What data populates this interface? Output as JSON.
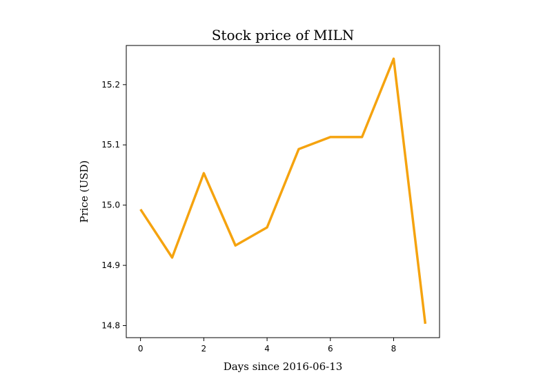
{
  "chart_data": {
    "type": "line",
    "title": "Stock price of MILN",
    "xlabel": "Days since 2016-06-13",
    "ylabel": "Price (USD)",
    "x": [
      0,
      1,
      2,
      3,
      4,
      5,
      6,
      7,
      8,
      9
    ],
    "series": [
      {
        "values": [
          14.993,
          14.913,
          15.053,
          14.933,
          14.963,
          15.093,
          15.113,
          15.113,
          15.243,
          14.803
        ],
        "color": "#f5a30f"
      }
    ],
    "xlim": [
      -0.45,
      9.45
    ],
    "ylim": [
      14.78,
      15.265
    ],
    "xticks": [
      0,
      2,
      4,
      6,
      8
    ],
    "yticks": [
      14.8,
      14.9,
      15.0,
      15.1,
      15.2
    ],
    "xtick_labels": [
      "0",
      "2",
      "4",
      "6",
      "8"
    ],
    "ytick_labels": [
      "14.8",
      "14.9",
      "15.0",
      "15.1",
      "15.2"
    ],
    "grid": false,
    "legend": "none"
  }
}
